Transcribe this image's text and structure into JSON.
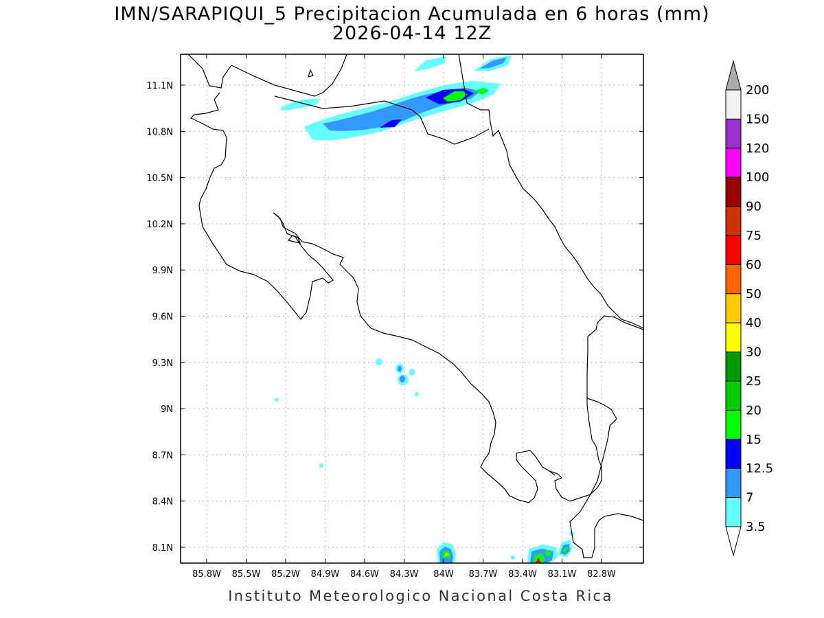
{
  "title": {
    "line1": "IMN/SARAPIQUI_5 Precipitacion Acumulada en 6 horas (mm)",
    "line2": "2026-04-14 12Z"
  },
  "footer": "Instituto Meteorologico Nacional Costa Rica",
  "map": {
    "lon_ticks": [
      {
        "value": -85.8,
        "label": "85.8W"
      },
      {
        "value": -85.5,
        "label": "85.5W"
      },
      {
        "value": -85.2,
        "label": "85.2W"
      },
      {
        "value": -84.9,
        "label": "84.9W"
      },
      {
        "value": -84.6,
        "label": "84.6W"
      },
      {
        "value": -84.3,
        "label": "84.3W"
      },
      {
        "value": -84.0,
        "label": "84W"
      },
      {
        "value": -83.7,
        "label": "83.7W"
      },
      {
        "value": -83.4,
        "label": "83.4W"
      },
      {
        "value": -83.1,
        "label": "83.1W"
      },
      {
        "value": -82.8,
        "label": "82.8W"
      }
    ],
    "lat_ticks": [
      {
        "value": 11.1,
        "label": "11.1N"
      },
      {
        "value": 10.8,
        "label": "10.8N"
      },
      {
        "value": 10.5,
        "label": "10.5N"
      },
      {
        "value": 10.2,
        "label": "10.2N"
      },
      {
        "value": 9.9,
        "label": "9.9N"
      },
      {
        "value": 9.6,
        "label": "9.6N"
      },
      {
        "value": 9.3,
        "label": "9.3N"
      },
      {
        "value": 9.0,
        "label": "9N"
      },
      {
        "value": 8.7,
        "label": "8.7N"
      },
      {
        "value": 8.4,
        "label": "8.4N"
      },
      {
        "value": 8.1,
        "label": "8.1N"
      }
    ],
    "grid": "dotted"
  },
  "colorbar": {
    "levels": [
      {
        "label": "3.5",
        "color": "#66ffff"
      },
      {
        "label": "7",
        "color": "#3399ff"
      },
      {
        "label": "12.5",
        "color": "#0000ff"
      },
      {
        "label": "15",
        "color": "#00ff00"
      },
      {
        "label": "20",
        "color": "#00cc00"
      },
      {
        "label": "25",
        "color": "#009900"
      },
      {
        "label": "30",
        "color": "#ffff00"
      },
      {
        "label": "40",
        "color": "#ffcc00"
      },
      {
        "label": "50",
        "color": "#ff6600"
      },
      {
        "label": "60",
        "color": "#ff0000"
      },
      {
        "label": "75",
        "color": "#cc3300"
      },
      {
        "label": "90",
        "color": "#990000"
      },
      {
        "label": "100",
        "color": "#ff00ff"
      },
      {
        "label": "120",
        "color": "#9933cc"
      },
      {
        "label": "150",
        "color": "#f2f2f2"
      },
      {
        "label": "200",
        "color": "#aaaaaa"
      }
    ]
  },
  "colors": {
    "coast": "#000000",
    "grid": "#a0a0a0",
    "lowest_shade": "#66ffff",
    "top_arrow": "#aaaaaa"
  }
}
